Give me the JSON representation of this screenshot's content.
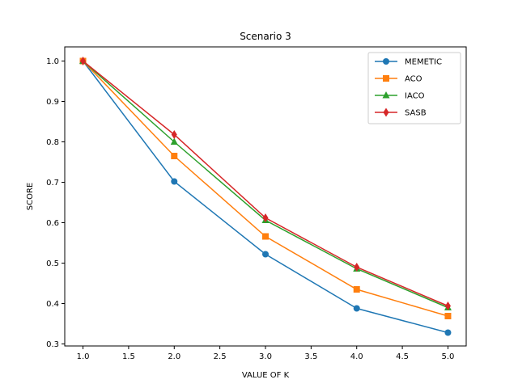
{
  "chart_data": {
    "type": "line",
    "title": "Scenario 3",
    "xlabel": "VALUE OF K",
    "ylabel": "SCORE",
    "xlim": [
      0.8,
      5.2
    ],
    "ylim": [
      0.295,
      1.035
    ],
    "xticks": [
      1.0,
      1.5,
      2.0,
      2.5,
      3.0,
      3.5,
      4.0,
      4.5,
      5.0
    ],
    "xtick_labels": [
      "1.0",
      "1.5",
      "2.0",
      "2.5",
      "3.0",
      "3.5",
      "4.0",
      "4.5",
      "5.0"
    ],
    "yticks": [
      0.3,
      0.4,
      0.5,
      0.6,
      0.7,
      0.8,
      0.9,
      1.0
    ],
    "ytick_labels": [
      "0.3",
      "0.4",
      "0.5",
      "0.6",
      "0.7",
      "0.8",
      "0.9",
      "1.0"
    ],
    "grid": false,
    "legend_position": "top-right",
    "x": [
      1,
      2,
      3,
      4,
      5
    ],
    "series": [
      {
        "name": "MEMETIC",
        "color": "#1f77b4",
        "marker": "circle",
        "values": [
          1.0,
          0.702,
          0.522,
          0.388,
          0.328
        ]
      },
      {
        "name": "ACO",
        "color": "#ff7f0e",
        "marker": "square",
        "values": [
          1.0,
          0.765,
          0.566,
          0.435,
          0.369
        ]
      },
      {
        "name": "IACO",
        "color": "#2ca02c",
        "marker": "triangle",
        "values": [
          1.0,
          0.8,
          0.606,
          0.486,
          0.39
        ]
      },
      {
        "name": "SASB",
        "color": "#d62728",
        "marker": "diamond",
        "values": [
          1.0,
          0.818,
          0.612,
          0.49,
          0.394
        ]
      }
    ]
  }
}
